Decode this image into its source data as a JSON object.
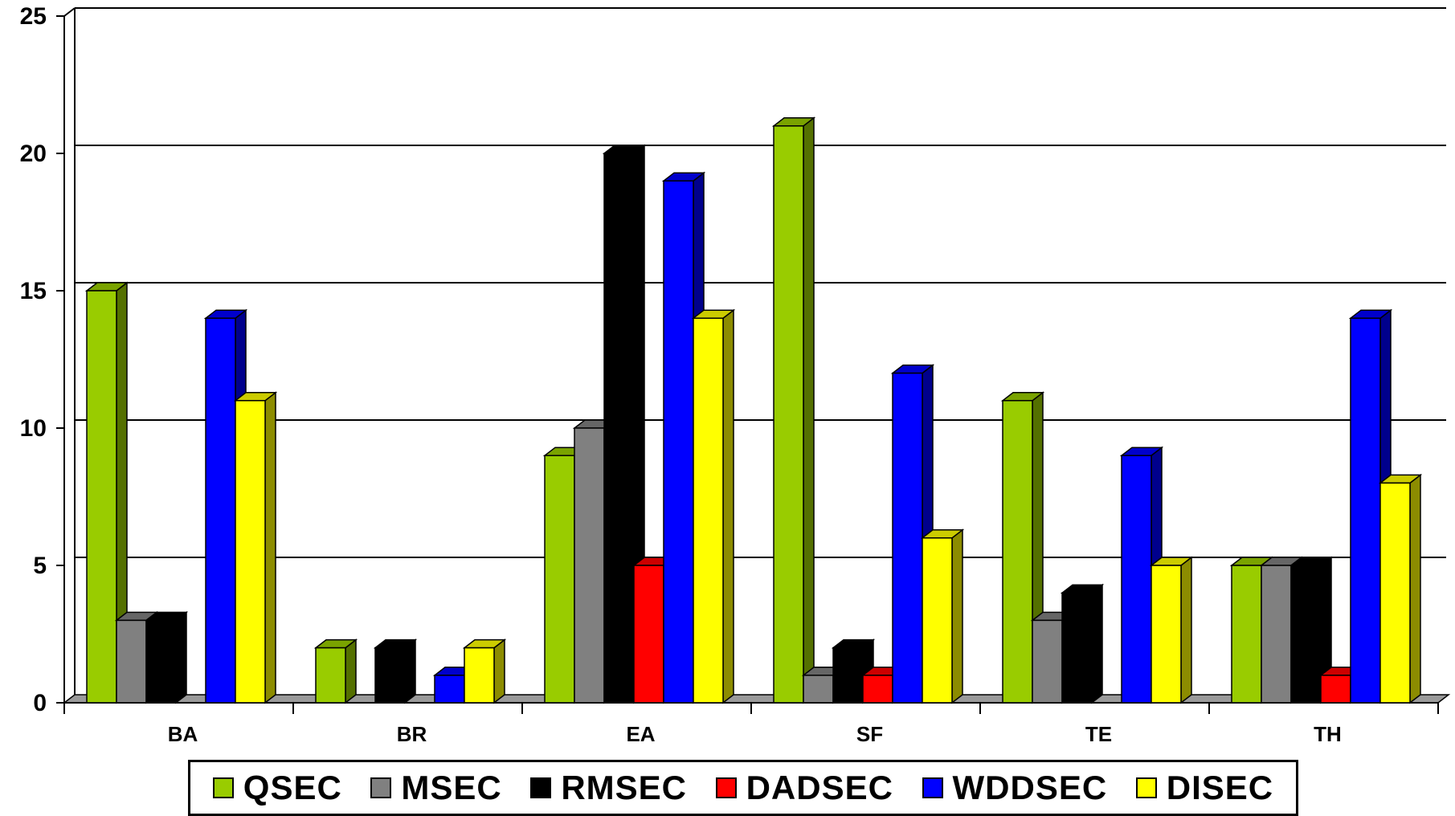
{
  "chart_data": {
    "type": "bar",
    "categories": [
      "BA",
      "BR",
      "EA",
      "SF",
      "TE",
      "TH"
    ],
    "series": [
      {
        "name": "QSEC",
        "color": "#99cc00",
        "values": [
          15,
          2,
          9,
          21,
          11,
          5
        ]
      },
      {
        "name": "MSEC",
        "color": "#808080",
        "values": [
          3,
          0,
          10,
          1,
          3,
          5
        ]
      },
      {
        "name": "RMSEC",
        "color": "#000000",
        "values": [
          3,
          2,
          20,
          2,
          4,
          5
        ]
      },
      {
        "name": "DADSEC",
        "color": "#ff0000",
        "values": [
          0,
          0,
          5,
          1,
          0,
          1
        ]
      },
      {
        "name": "WDDSEC",
        "color": "#0000ff",
        "values": [
          14,
          1,
          19,
          12,
          9,
          14
        ]
      },
      {
        "name": "DISEC",
        "color": "#ffff00",
        "values": [
          11,
          2,
          14,
          6,
          5,
          8
        ]
      }
    ],
    "y_ticks": [
      "0",
      "5",
      "10",
      "15",
      "20",
      "25"
    ],
    "ylim": [
      0,
      25
    ],
    "grid": true,
    "legend_position": "bottom",
    "style": "3d-clustered-column"
  }
}
